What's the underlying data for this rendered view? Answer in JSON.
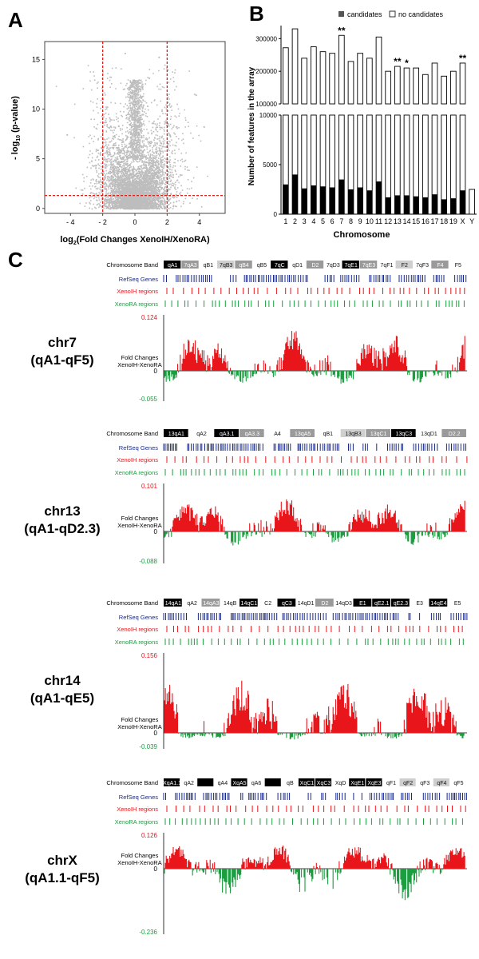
{
  "panel_a": {
    "letter": "A",
    "ylabel_main": "- log",
    "ylabel_sub": "10",
    "ylabel_tail": " (p-value)",
    "xlabel_main": "log",
    "xlabel_sub": "2",
    "xlabel_tail": "(Fold Changes XenoIH/XenoRA)",
    "colors": {
      "points": "#bdbdbd",
      "threshold": "#e0201b"
    }
  },
  "panel_b": {
    "letter": "B",
    "legend": {
      "candidates": "candidates",
      "no_candidates": "no candidates"
    },
    "ylabel": "Number of features in the array",
    "xlabel": "Chromosome",
    "colors": {
      "candidates": "#000000",
      "no_candidates": "#ffffff"
    }
  },
  "panel_c": {
    "letter": "C",
    "colors": {
      "positive": "#e8151b",
      "negative": "#1a9e3f",
      "genes": "#1a2a8a",
      "xenoih": "#e8151b",
      "xenora": "#1a9e3f"
    },
    "tracks": [
      {
        "chrom": "chr7",
        "range": "(qA1-qF5)",
        "band_label": "Chromosome Band",
        "bands": [
          {
            "name": "qA1",
            "shade": "black"
          },
          {
            "name": "7qA3",
            "shade": "mid"
          },
          {
            "name": "qB1",
            "shade": "white"
          },
          {
            "name": "7qB3",
            "shade": "light"
          },
          {
            "name": "qB4",
            "shade": "mid"
          },
          {
            "name": "qB5",
            "shade": "white"
          },
          {
            "name": "7qC",
            "shade": "black"
          },
          {
            "name": "qD1",
            "shade": "white"
          },
          {
            "name": "D2",
            "shade": "mid"
          },
          {
            "name": "7qD3",
            "shade": "white"
          },
          {
            "name": "7qE1",
            "shade": "black"
          },
          {
            "name": "7qE3",
            "shade": "mid"
          },
          {
            "name": "7qF1",
            "shade": "white"
          },
          {
            "name": "F2",
            "shade": "light"
          },
          {
            "name": "7qF3",
            "shade": "white"
          },
          {
            "name": "F4",
            "shade": "mid"
          },
          {
            "name": "F5",
            "shade": "white"
          }
        ],
        "genes_label": "RefSeq Genes",
        "xenoih_label": "XenoIH regions",
        "xenora_label": "XenoRA regions",
        "ymax": "0.124",
        "zero": "0",
        "ymin": "-0.055",
        "ylabel1": "Fold Changes",
        "ylabel2": "XenoIH-XenoRA"
      },
      {
        "chrom": "chr13",
        "range": "(qA1-qD2.3)",
        "band_label": "Chromosome Band",
        "bands": [
          {
            "name": "13qA1",
            "shade": "black"
          },
          {
            "name": "qA2",
            "shade": "white"
          },
          {
            "name": "qA3.1",
            "shade": "black"
          },
          {
            "name": "qA3.3",
            "shade": "mid"
          },
          {
            "name": "A4",
            "shade": "white"
          },
          {
            "name": "13qA5",
            "shade": "mid"
          },
          {
            "name": "qB1",
            "shade": "white"
          },
          {
            "name": "13qB3",
            "shade": "light"
          },
          {
            "name": "13qC1",
            "shade": "mid"
          },
          {
            "name": "13qC3",
            "shade": "black"
          },
          {
            "name": "13qD1",
            "shade": "white"
          },
          {
            "name": "D2.2",
            "shade": "mid"
          }
        ],
        "genes_label": "RefSeq Genes",
        "xenoih_label": "XenoIH regions",
        "xenora_label": "XenoRA regions",
        "ymax": "0.101",
        "zero": "0",
        "ymin": "-0.088",
        "ylabel1": "Fold Changes",
        "ylabel2": "XenoIH-XenoRA"
      },
      {
        "chrom": "chr14",
        "range": "(qA1-qE5)",
        "band_label": "Chromosome Band",
        "bands": [
          {
            "name": "14qA1",
            "shade": "black"
          },
          {
            "name": "qA2",
            "shade": "white"
          },
          {
            "name": "14qA3",
            "shade": "mid"
          },
          {
            "name": "14qB",
            "shade": "white"
          },
          {
            "name": "14qC1",
            "shade": "black"
          },
          {
            "name": "C2",
            "shade": "white"
          },
          {
            "name": "qC3",
            "shade": "black"
          },
          {
            "name": "14qD1",
            "shade": "white"
          },
          {
            "name": "D2",
            "shade": "mid"
          },
          {
            "name": "14qD3",
            "shade": "white"
          },
          {
            "name": "E1",
            "shade": "black"
          },
          {
            "name": "qE2.1",
            "shade": "black"
          },
          {
            "name": "qE2.3",
            "shade": "black"
          },
          {
            "name": "E3",
            "shade": "white"
          },
          {
            "name": "14qE4",
            "shade": "black"
          },
          {
            "name": "E5",
            "shade": "white"
          }
        ],
        "genes_label": "RefSeq Genes",
        "xenoih_label": "XenoIH regions",
        "xenora_label": "XenoRA regions",
        "ymax": "0.156",
        "zero": "0",
        "ymin": "-0.039",
        "ylabel1": "Fold Changes",
        "ylabel2": "XenoIH-XenoRA"
      },
      {
        "chrom": "chrX",
        "range": "(qA1.1-qF5)",
        "band_label": "Chromosome Band",
        "bands": [
          {
            "name": "XqA1.1",
            "shade": "black"
          },
          {
            "name": "qA2",
            "shade": "white"
          },
          {
            "name": "",
            "shade": "black"
          },
          {
            "name": "qA4",
            "shade": "white"
          },
          {
            "name": "XqA5",
            "shade": "black"
          },
          {
            "name": "qA6",
            "shade": "white"
          },
          {
            "name": "",
            "shade": "black"
          },
          {
            "name": "qB",
            "shade": "white"
          },
          {
            "name": "XqC1",
            "shade": "black"
          },
          {
            "name": "XqC3",
            "shade": "black"
          },
          {
            "name": "XqD",
            "shade": "white"
          },
          {
            "name": "XqE1",
            "shade": "black"
          },
          {
            "name": "XqE3",
            "shade": "black"
          },
          {
            "name": "qF1",
            "shade": "white"
          },
          {
            "name": "qF2",
            "shade": "light"
          },
          {
            "name": "qF3",
            "shade": "white"
          },
          {
            "name": "qF4",
            "shade": "light"
          },
          {
            "name": "qF5",
            "shade": "white"
          }
        ],
        "genes_label": "RefSeq Genes",
        "xenoih_label": "XenoIH regions",
        "xenora_label": "XenoRA regions",
        "ymax": "0.126",
        "zero": "0",
        "ymin": "-0.236",
        "ylabel1": "Fold Changes",
        "ylabel2": "XenoIH-XenoRA"
      }
    ]
  },
  "chart_data": [
    {
      "type": "scatter",
      "title": "",
      "xlabel": "log2(Fold Changes XenoIH/XenoRA)",
      "ylabel": "- log10 (p-value)",
      "xlim": [
        -5.6,
        5.6
      ],
      "ylim": [
        -0.5,
        16.8
      ],
      "xticks": [
        "- 4",
        "- 2",
        "0",
        "2",
        "4"
      ],
      "yticks": [
        "0",
        "5",
        "10",
        "15"
      ],
      "thresholds": {
        "x": [
          -2,
          2
        ],
        "y": 1.3
      },
      "grid": false
    },
    {
      "type": "bar",
      "stacked": true,
      "broken_axis": true,
      "xlabel": "Chromosome",
      "ylabel": "Number of features in the array",
      "categories": [
        "1",
        "2",
        "3",
        "4",
        "5",
        "6",
        "7",
        "8",
        "9",
        "10",
        "11",
        "12",
        "13",
        "14",
        "15",
        "16",
        "17",
        "18",
        "19",
        "X",
        "Y"
      ],
      "series": [
        {
          "name": "candidates",
          "values": [
            3000,
            4000,
            2600,
            2900,
            2800,
            2700,
            3500,
            2500,
            2700,
            2400,
            3300,
            1700,
            1900,
            1900,
            1800,
            1700,
            2000,
            1500,
            1600,
            2400,
            0
          ]
        },
        {
          "name": "no candidates",
          "values": [
            272000,
            330000,
            240000,
            275000,
            260000,
            255000,
            310000,
            230000,
            255000,
            240000,
            305000,
            200000,
            215000,
            210000,
            210000,
            190000,
            225000,
            185000,
            200000,
            225000,
            2500
          ]
        }
      ],
      "annotations": [
        {
          "category": "7",
          "text": "**"
        },
        {
          "category": "13",
          "text": "**"
        },
        {
          "category": "14",
          "text": "*"
        },
        {
          "category": "X",
          "text": "**"
        }
      ],
      "yticks_lower": [
        "0",
        "5000",
        "10000"
      ],
      "yticks_upper": [
        "100000",
        "200000",
        "300000"
      ],
      "legend": "top-right"
    }
  ]
}
